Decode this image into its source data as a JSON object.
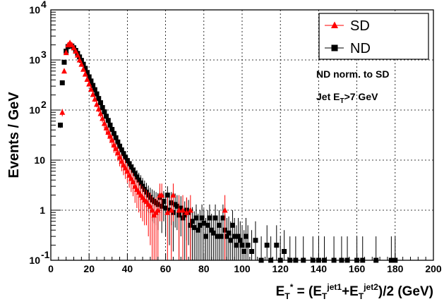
{
  "chart_data": {
    "type": "scatter",
    "title": "",
    "xlabel": {
      "parts": [
        "E",
        "T",
        "*",
        " = (E",
        "T",
        "jet1",
        "+E",
        "T",
        "jet2",
        ")/2 (GeV)"
      ]
    },
    "ylabel": "Events / GeV",
    "xlim": [
      0,
      200
    ],
    "ylim": [
      0.1,
      10000
    ],
    "y_scale": "log",
    "grid": true,
    "x_ticks": [
      {
        "value": 0,
        "label": "0"
      },
      {
        "value": 20,
        "label": "20"
      },
      {
        "value": 40,
        "label": "40"
      },
      {
        "value": 60,
        "label": "60"
      },
      {
        "value": 80,
        "label": "80"
      },
      {
        "value": 100,
        "label": "100"
      },
      {
        "value": 120,
        "label": "120"
      },
      {
        "value": 140,
        "label": "140"
      },
      {
        "value": 160,
        "label": "160"
      },
      {
        "value": 180,
        "label": "180"
      },
      {
        "value": 200,
        "label": "200"
      }
    ],
    "y_ticks": [
      {
        "value": 0.1,
        "base": "10",
        "exp": "-1"
      },
      {
        "value": 1,
        "base": "1",
        "exp": ""
      },
      {
        "value": 10,
        "base": "10",
        "exp": ""
      },
      {
        "value": 100,
        "base": "10",
        "exp": "2"
      },
      {
        "value": 1000,
        "base": "10",
        "exp": "3"
      },
      {
        "value": 10000,
        "base": "10",
        "exp": "4"
      }
    ],
    "legend": {
      "placement": "top-right",
      "entries": [
        {
          "label": "SD",
          "marker": "triangle",
          "color": "#ff0000"
        },
        {
          "label": "ND",
          "marker": "square",
          "color": "#000000"
        }
      ]
    },
    "annotations": [
      {
        "parts": [
          "ND norm. to SD"
        ]
      },
      {
        "parts": [
          "Jet E",
          "T",
          ">7 GeV"
        ]
      }
    ],
    "series": [
      {
        "name": "SD",
        "marker": "triangle",
        "color": "#ff0000",
        "x": [
          6,
          7,
          8,
          9,
          10,
          11,
          12,
          13,
          14,
          15,
          16,
          17,
          18,
          19,
          20,
          21,
          22,
          23,
          24,
          25,
          26,
          27,
          28,
          29,
          30,
          31,
          32,
          33,
          34,
          35,
          36,
          37,
          38,
          39,
          40,
          41,
          42,
          43,
          44,
          45,
          46,
          47,
          48,
          49,
          50,
          51,
          52,
          53,
          54,
          55,
          56,
          57,
          58,
          61,
          63,
          64,
          67,
          69,
          71,
          73,
          91
        ],
        "y": [
          90,
          600,
          1400,
          2000,
          2200,
          2000,
          1750,
          1500,
          1250,
          1000,
          820,
          650,
          520,
          410,
          330,
          260,
          205,
          165,
          130,
          105,
          85,
          68,
          54,
          44,
          36,
          30,
          25,
          20,
          17,
          14,
          11.5,
          9.5,
          8,
          7,
          6,
          5,
          4.3,
          3.7,
          3,
          2.6,
          2.3,
          2,
          1.8,
          1.6,
          1.5,
          1.3,
          1.2,
          1,
          0.8,
          0.9,
          1,
          2,
          2,
          0.9,
          1,
          2,
          1,
          1,
          0.9,
          1,
          1
        ],
        "err": [
          15,
          40,
          60,
          70,
          75,
          70,
          65,
          60,
          55,
          50,
          45,
          40,
          36,
          32,
          28,
          25,
          22,
          20,
          17,
          15,
          14,
          12,
          11,
          10,
          9,
          8,
          7,
          6,
          5,
          4.5,
          4,
          3.5,
          3,
          2.8,
          2.5,
          2.2,
          2,
          1.8,
          1.6,
          1.5,
          1.4,
          1.3,
          1.2,
          1.1,
          1,
          1,
          1,
          0.9,
          0.9,
          0.9,
          0.9,
          1.4,
          1.4,
          0.9,
          1,
          1.4,
          1,
          1,
          0.9,
          1,
          1
        ]
      },
      {
        "name": "ND",
        "marker": "square",
        "color": "#000000",
        "x": [
          5,
          6,
          7,
          8,
          9,
          10,
          11,
          12,
          13,
          14,
          15,
          16,
          17,
          18,
          19,
          20,
          21,
          22,
          23,
          24,
          25,
          26,
          27,
          28,
          29,
          30,
          31,
          32,
          33,
          34,
          35,
          36,
          37,
          38,
          39,
          40,
          41,
          42,
          43,
          44,
          45,
          46,
          47,
          48,
          49,
          50,
          51,
          52,
          53,
          54,
          55,
          56,
          57,
          58,
          59,
          60,
          61,
          62,
          63,
          64,
          65,
          66,
          67,
          68,
          69,
          70,
          71,
          72,
          73,
          74,
          75,
          76,
          77,
          78,
          79,
          80,
          81,
          82,
          83,
          84,
          85,
          86,
          87,
          88,
          89,
          90,
          91,
          92,
          93,
          94,
          95,
          96,
          97,
          98,
          99,
          100,
          101,
          102,
          103,
          105,
          107,
          110,
          113,
          115,
          118,
          120,
          122,
          125,
          128,
          132,
          137,
          140,
          143,
          148,
          152,
          155,
          160,
          163,
          170,
          178,
          180
        ],
        "y": [
          50,
          350,
          900,
          1500,
          1850,
          1950,
          1900,
          1750,
          1550,
          1350,
          1150,
          980,
          820,
          680,
          560,
          460,
          380,
          310,
          255,
          210,
          170,
          140,
          112,
          92,
          75,
          62,
          50,
          41,
          34,
          28,
          23,
          19,
          16,
          13.5,
          11.5,
          9.8,
          8.5,
          7.3,
          6.3,
          5.4,
          4.6,
          4,
          3.5,
          3,
          2.6,
          2.3,
          2,
          1.8,
          1.6,
          1.5,
          1.4,
          1.3,
          1.8,
          1.2,
          1.5,
          1.1,
          2,
          1,
          1.4,
          0.9,
          1.3,
          1.2,
          0.8,
          1.1,
          0.7,
          0.8,
          1,
          0.9,
          0.5,
          0.6,
          0.45,
          0.7,
          0.4,
          0.5,
          0.7,
          0.55,
          0.3,
          0.5,
          0.7,
          0.4,
          0.35,
          0.7,
          0.3,
          0.5,
          0.3,
          0.7,
          0.4,
          0.3,
          0.35,
          0.25,
          0.5,
          0.3,
          0.2,
          0.3,
          0.25,
          0.2,
          0.15,
          0.3,
          0.2,
          0.15,
          0.25,
          0.1,
          0.2,
          0.1,
          0.2,
          0.1,
          0.15,
          0.1,
          0.1,
          0.1,
          0.1,
          0.1,
          0.1,
          0.1,
          0.1,
          0.1,
          0.1,
          0.1,
          0.1,
          0.1,
          0.1
        ],
        "err": [
          6,
          15,
          25,
          35,
          40,
          42,
          42,
          40,
          38,
          35,
          32,
          30,
          27,
          25,
          22,
          20,
          18,
          16,
          15,
          13,
          12,
          11,
          10,
          9,
          8,
          7,
          6.5,
          6,
          5,
          4.5,
          4,
          3.6,
          3.2,
          3,
          2.7,
          2.5,
          2.3,
          2.1,
          2,
          1.8,
          1.7,
          1.6,
          1.5,
          1.4,
          1.3,
          1.2,
          1.1,
          1,
          1,
          0.95,
          0.9,
          0.9,
          1,
          0.85,
          0.9,
          0.8,
          1,
          0.8,
          0.9,
          0.75,
          0.85,
          0.8,
          0.7,
          0.8,
          0.65,
          0.7,
          0.75,
          0.7,
          0.5,
          0.55,
          0.5,
          0.6,
          0.45,
          0.5,
          0.6,
          0.5,
          0.4,
          0.5,
          0.6,
          0.45,
          0.4,
          0.6,
          0.4,
          0.5,
          0.4,
          0.6,
          0.45,
          0.4,
          0.4,
          0.35,
          0.5,
          0.4,
          0.3,
          0.4,
          0.35,
          0.3,
          0.25,
          0.4,
          0.3,
          0.25,
          0.35,
          0.2,
          0.3,
          0.2,
          0.3,
          0.2,
          0.25,
          0.2,
          0.2,
          0.2,
          0.2,
          0.2,
          0.2,
          0.2,
          0.2,
          0.2,
          0.2,
          0.2,
          0.2,
          0.2,
          0.2
        ]
      }
    ]
  }
}
